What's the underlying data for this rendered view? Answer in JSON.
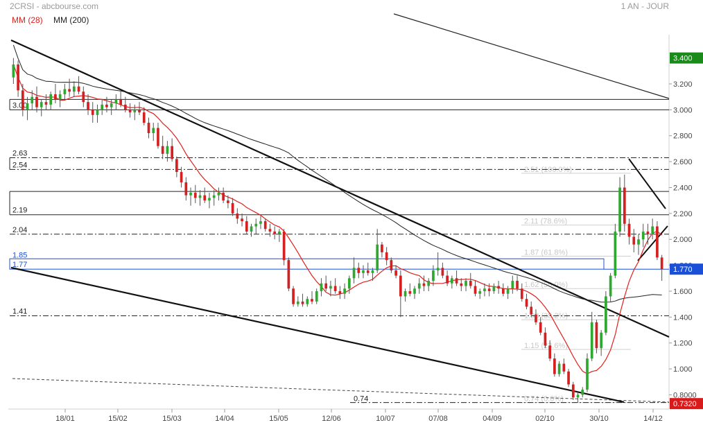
{
  "header": {
    "title": "2CRSI - abcbourse.com",
    "period": "1 AN - JOUR",
    "legend": [
      {
        "label": "MM (28)",
        "color": "#e0201c"
      },
      {
        "label": "MM (200)",
        "color": "#222222"
      }
    ]
  },
  "chart_data": {
    "type": "candlestick",
    "y_range": [
      0.69,
      3.58
    ],
    "y_ticks": [
      {
        "value": 3.2,
        "label": "3.200"
      },
      {
        "value": 3.0,
        "label": "3.000"
      },
      {
        "value": 2.8,
        "label": "2.800"
      },
      {
        "value": 2.6,
        "label": "2.600"
      },
      {
        "value": 2.4,
        "label": "2.400"
      },
      {
        "value": 2.2,
        "label": "2.200"
      },
      {
        "value": 2.0,
        "label": "2.000"
      },
      {
        "value": 1.8,
        "label": "1.800"
      },
      {
        "value": 1.6,
        "label": "1.600"
      },
      {
        "value": 1.4,
        "label": "1.400"
      },
      {
        "value": 1.2,
        "label": "1.200"
      },
      {
        "value": 1.0,
        "label": "1.000"
      },
      {
        "value": 0.8,
        "label": "0.8000"
      }
    ],
    "x_labels": [
      "18/01",
      "15/02",
      "15/03",
      "14/04",
      "15/05",
      "12/06",
      "10/07",
      "07/08",
      "04/09",
      "02/10",
      "30/10",
      "14/12"
    ],
    "price_badges": [
      {
        "value": 3.4,
        "label": "3.400",
        "color": "#1a8a1a"
      },
      {
        "value": 1.77,
        "label": "1.770",
        "color": "#1a4fd8"
      },
      {
        "value": 0.732,
        "label": "0.7320",
        "color": "#d81a1a"
      }
    ],
    "support_resistance": [
      {
        "value": 3.08,
        "style": "solid",
        "label": ""
      },
      {
        "value": 3.0,
        "style": "solid",
        "label": "3.00"
      },
      {
        "value": 2.63,
        "style": "dashdot",
        "label": "2.63"
      },
      {
        "value": 2.54,
        "style": "dashdot",
        "label": "2.54"
      },
      {
        "value": 2.37,
        "style": "solid",
        "label": ""
      },
      {
        "value": 2.19,
        "style": "solid",
        "label": "2.19"
      },
      {
        "value": 2.04,
        "style": "dashdot",
        "label": "2.04"
      },
      {
        "value": 1.41,
        "style": "dashdot",
        "label": "1.41"
      }
    ],
    "blue_zone": {
      "high": 1.85,
      "low": 1.77,
      "labels": [
        "1.85",
        "1.77"
      ],
      "color": "#1a4fd8"
    },
    "fibonacci": [
      {
        "value": 2.51,
        "label": "2.51 (100.0%)"
      },
      {
        "value": 2.11,
        "label": "2.11 (78.6%)"
      },
      {
        "value": 1.87,
        "label": "1.87 (61.8%)"
      },
      {
        "value": 1.62,
        "label": "1.62 (50.0%)"
      },
      {
        "value": 1.38,
        "label": "1.38 (38.2%)"
      },
      {
        "value": 1.15,
        "label": "1.15 (23.6%)"
      },
      {
        "value": 0.74,
        "label": "0.74 (0.0%)"
      }
    ],
    "annotation_074": "0.74",
    "series": [
      {
        "name": "MM (28)",
        "color": "#e0201c"
      },
      {
        "name": "MM (200)",
        "color": "#222222"
      }
    ],
    "ohlc": [
      [
        3.25,
        3.4,
        3.2,
        3.35
      ],
      [
        3.35,
        3.38,
        3.1,
        3.15
      ],
      [
        3.15,
        3.2,
        2.95,
        3.0
      ],
      [
        3.0,
        3.1,
        2.92,
        3.05
      ],
      [
        3.05,
        3.15,
        3.0,
        3.1
      ],
      [
        3.1,
        3.18,
        2.98,
        3.02
      ],
      [
        3.02,
        3.08,
        2.95,
        3.06
      ],
      [
        3.06,
        3.12,
        3.0,
        3.04
      ],
      [
        3.04,
        3.14,
        3.0,
        3.12
      ],
      [
        3.12,
        3.2,
        3.05,
        3.08
      ],
      [
        3.08,
        3.15,
        3.02,
        3.12
      ],
      [
        3.12,
        3.2,
        3.08,
        3.16
      ],
      [
        3.16,
        3.24,
        3.1,
        3.14
      ],
      [
        3.14,
        3.22,
        3.1,
        3.18
      ],
      [
        3.18,
        3.26,
        3.12,
        3.14
      ],
      [
        3.14,
        3.18,
        3.02,
        3.06
      ],
      [
        3.06,
        3.12,
        2.96,
        3.0
      ],
      [
        3.0,
        3.06,
        2.9,
        2.96
      ],
      [
        2.96,
        3.04,
        2.9,
        3.0
      ],
      [
        3.0,
        3.08,
        2.96,
        3.04
      ],
      [
        3.04,
        3.1,
        2.98,
        3.02
      ],
      [
        3.02,
        3.08,
        2.96,
        3.05
      ],
      [
        3.05,
        3.12,
        3.0,
        3.08
      ],
      [
        3.08,
        3.14,
        3.02,
        3.04
      ],
      [
        3.04,
        3.1,
        2.98,
        3.0
      ],
      [
        3.0,
        3.05,
        2.94,
        2.98
      ],
      [
        2.98,
        3.04,
        2.92,
        3.0
      ],
      [
        3.0,
        3.06,
        2.96,
        2.98
      ],
      [
        2.98,
        3.02,
        2.88,
        2.9
      ],
      [
        2.9,
        2.94,
        2.78,
        2.82
      ],
      [
        2.82,
        2.9,
        2.76,
        2.86
      ],
      [
        2.86,
        2.9,
        2.7,
        2.72
      ],
      [
        2.72,
        2.8,
        2.62,
        2.66
      ],
      [
        2.66,
        2.76,
        2.6,
        2.72
      ],
      [
        2.72,
        2.78,
        2.6,
        2.62
      ],
      [
        2.62,
        2.64,
        2.48,
        2.52
      ],
      [
        2.52,
        2.56,
        2.4,
        2.44
      ],
      [
        2.44,
        2.48,
        2.3,
        2.34
      ],
      [
        2.34,
        2.4,
        2.26,
        2.36
      ],
      [
        2.36,
        2.42,
        2.28,
        2.32
      ],
      [
        2.32,
        2.38,
        2.26,
        2.34
      ],
      [
        2.34,
        2.4,
        2.28,
        2.3
      ],
      [
        2.3,
        2.36,
        2.24,
        2.32
      ],
      [
        2.32,
        2.38,
        2.26,
        2.34
      ],
      [
        2.34,
        2.4,
        2.3,
        2.36
      ],
      [
        2.36,
        2.4,
        2.28,
        2.3
      ],
      [
        2.3,
        2.34,
        2.24,
        2.28
      ],
      [
        2.28,
        2.32,
        2.18,
        2.2
      ],
      [
        2.2,
        2.24,
        2.12,
        2.16
      ],
      [
        2.16,
        2.2,
        2.1,
        2.14
      ],
      [
        2.14,
        2.18,
        2.04,
        2.06
      ],
      [
        2.06,
        2.12,
        2.02,
        2.1
      ],
      [
        2.1,
        2.16,
        2.04,
        2.12
      ],
      [
        2.12,
        2.18,
        2.08,
        2.14
      ],
      [
        2.14,
        2.16,
        2.06,
        2.08
      ],
      [
        2.08,
        2.12,
        2.02,
        2.06
      ],
      [
        2.06,
        2.1,
        2.0,
        2.04
      ],
      [
        2.04,
        2.08,
        1.98,
        2.06
      ],
      [
        2.06,
        2.08,
        1.8,
        1.84
      ],
      [
        1.84,
        1.86,
        1.6,
        1.62
      ],
      [
        1.62,
        1.64,
        1.48,
        1.5
      ],
      [
        1.5,
        1.56,
        1.48,
        1.52
      ],
      [
        1.52,
        1.58,
        1.48,
        1.5
      ],
      [
        1.5,
        1.56,
        1.48,
        1.54
      ],
      [
        1.54,
        1.6,
        1.5,
        1.52
      ],
      [
        1.52,
        1.62,
        1.5,
        1.6
      ],
      [
        1.6,
        1.7,
        1.56,
        1.66
      ],
      [
        1.66,
        1.72,
        1.6,
        1.62
      ],
      [
        1.62,
        1.68,
        1.56,
        1.64
      ],
      [
        1.64,
        1.7,
        1.58,
        1.6
      ],
      [
        1.6,
        1.64,
        1.54,
        1.58
      ],
      [
        1.58,
        1.66,
        1.54,
        1.62
      ],
      [
        1.62,
        1.72,
        1.58,
        1.7
      ],
      [
        1.7,
        1.86,
        1.66,
        1.78
      ],
      [
        1.78,
        1.82,
        1.7,
        1.74
      ],
      [
        1.74,
        1.8,
        1.7,
        1.76
      ],
      [
        1.76,
        1.82,
        1.72,
        1.74
      ],
      [
        1.74,
        1.78,
        1.68,
        1.76
      ],
      [
        1.76,
        2.08,
        1.74,
        1.96
      ],
      [
        1.96,
        1.98,
        1.86,
        1.9
      ],
      [
        1.9,
        1.94,
        1.8,
        1.84
      ],
      [
        1.84,
        1.86,
        1.74,
        1.76
      ],
      [
        1.76,
        1.8,
        1.7,
        1.72
      ],
      [
        1.72,
        1.76,
        1.4,
        1.56
      ],
      [
        1.56,
        1.62,
        1.52,
        1.6
      ],
      [
        1.6,
        1.66,
        1.56,
        1.58
      ],
      [
        1.58,
        1.64,
        1.54,
        1.62
      ],
      [
        1.62,
        1.7,
        1.58,
        1.66
      ],
      [
        1.66,
        1.72,
        1.6,
        1.64
      ],
      [
        1.64,
        1.7,
        1.6,
        1.68
      ],
      [
        1.68,
        1.8,
        1.64,
        1.76
      ],
      [
        1.76,
        1.9,
        1.72,
        1.78
      ],
      [
        1.78,
        1.82,
        1.7,
        1.72
      ],
      [
        1.72,
        1.76,
        1.64,
        1.66
      ],
      [
        1.66,
        1.72,
        1.62,
        1.7
      ],
      [
        1.7,
        1.76,
        1.64,
        1.66
      ],
      [
        1.66,
        1.7,
        1.6,
        1.64
      ],
      [
        1.64,
        1.7,
        1.6,
        1.68
      ],
      [
        1.68,
        1.74,
        1.62,
        1.64
      ],
      [
        1.64,
        1.68,
        1.56,
        1.58
      ],
      [
        1.58,
        1.62,
        1.54,
        1.6
      ],
      [
        1.6,
        1.66,
        1.56,
        1.62
      ],
      [
        1.62,
        1.66,
        1.56,
        1.6
      ],
      [
        1.6,
        1.66,
        1.58,
        1.64
      ],
      [
        1.64,
        1.68,
        1.58,
        1.62
      ],
      [
        1.62,
        1.66,
        1.56,
        1.58
      ],
      [
        1.58,
        1.64,
        1.54,
        1.62
      ],
      [
        1.62,
        1.72,
        1.58,
        1.68
      ],
      [
        1.68,
        1.72,
        1.6,
        1.62
      ],
      [
        1.62,
        1.66,
        1.52,
        1.54
      ],
      [
        1.54,
        1.58,
        1.46,
        1.48
      ],
      [
        1.48,
        1.52,
        1.4,
        1.42
      ],
      [
        1.42,
        1.46,
        1.34,
        1.36
      ],
      [
        1.36,
        1.4,
        1.26,
        1.28
      ],
      [
        1.28,
        1.32,
        1.16,
        1.18
      ],
      [
        1.18,
        1.22,
        1.06,
        1.08
      ],
      [
        1.08,
        1.12,
        0.94,
        0.96
      ],
      [
        0.96,
        1.06,
        0.94,
        1.04
      ],
      [
        1.04,
        1.08,
        0.96,
        0.98
      ],
      [
        0.98,
        1.0,
        0.86,
        0.88
      ],
      [
        0.88,
        0.9,
        0.76,
        0.78
      ],
      [
        0.78,
        0.82,
        0.74,
        0.8
      ],
      [
        0.8,
        0.86,
        0.78,
        0.84
      ],
      [
        0.84,
        1.12,
        0.82,
        1.08
      ],
      [
        1.08,
        1.44,
        1.06,
        1.36
      ],
      [
        1.36,
        1.38,
        1.12,
        1.16
      ],
      [
        1.16,
        1.3,
        1.1,
        1.28
      ],
      [
        1.28,
        1.6,
        1.26,
        1.56
      ],
      [
        1.56,
        1.74,
        1.52,
        1.72
      ],
      [
        1.72,
        2.12,
        1.7,
        2.06
      ],
      [
        2.06,
        2.48,
        2.02,
        2.4
      ],
      [
        2.4,
        2.5,
        2.06,
        2.12
      ],
      [
        2.12,
        2.16,
        1.96,
        2.02
      ],
      [
        2.02,
        2.08,
        1.9,
        1.96
      ],
      [
        1.96,
        2.04,
        1.88,
        2.0
      ],
      [
        2.0,
        2.12,
        1.94,
        2.06
      ],
      [
        2.06,
        2.12,
        1.96,
        2.04
      ],
      [
        2.04,
        2.16,
        2.0,
        2.1
      ],
      [
        2.1,
        2.14,
        1.84,
        1.86
      ],
      [
        1.86,
        1.88,
        1.68,
        1.77
      ]
    ]
  }
}
